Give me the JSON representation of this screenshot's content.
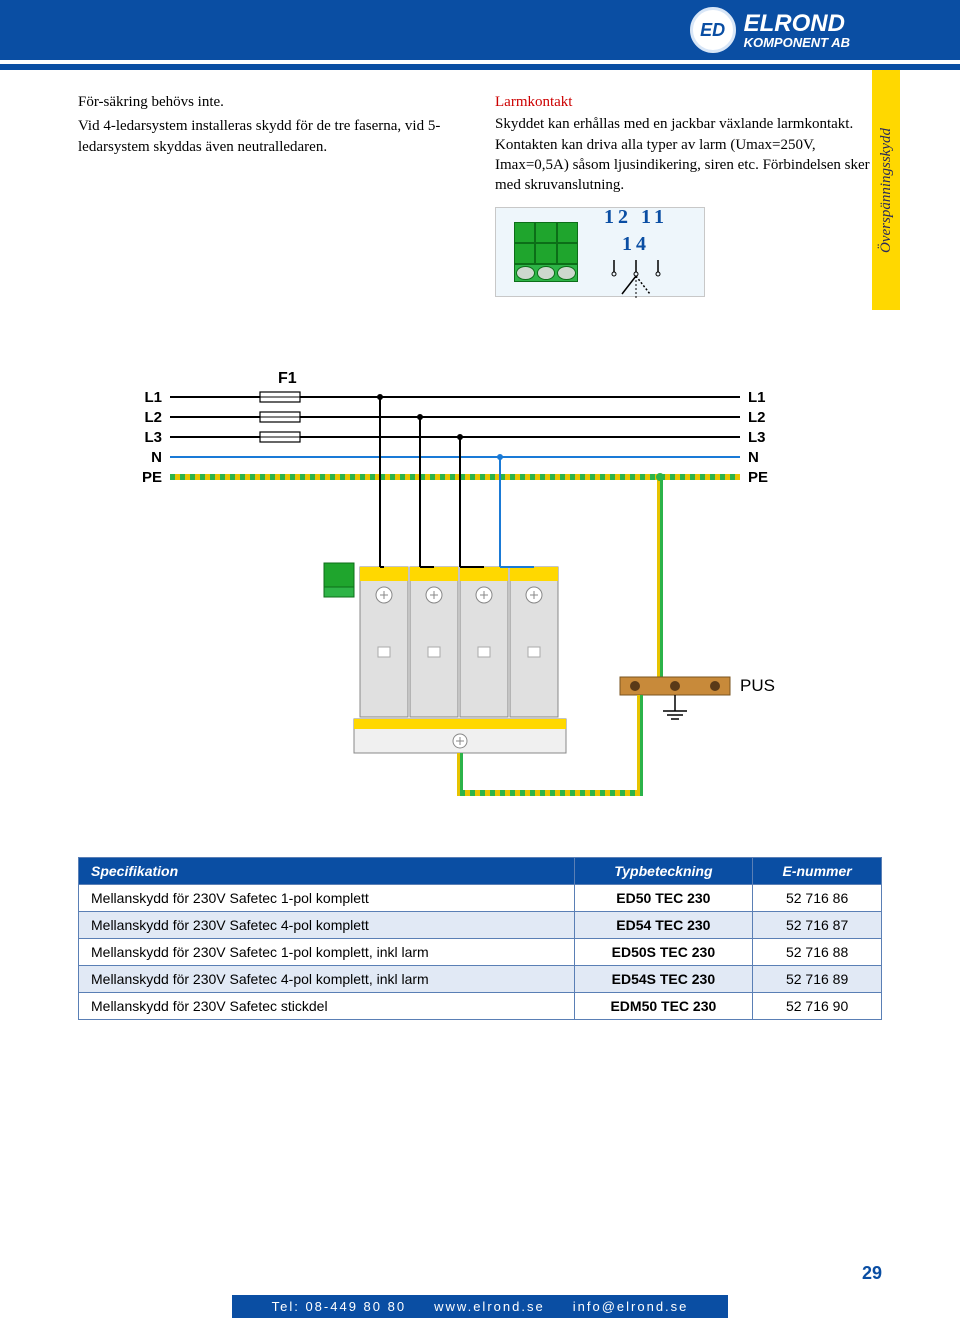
{
  "header": {
    "logo_mono": "ED",
    "logo_line1": "ELROND",
    "logo_line2": "KOMPONENT AB"
  },
  "left_col": {
    "p1": "För-säkring behövs inte.",
    "p2": "Vid 4-ledarsystem installeras skydd för de tre faserna, vid 5-ledarsystem skyddas även neutralledaren."
  },
  "right_col": {
    "title": "Larmkontakt",
    "p1": "Skyddet kan erhållas med en jackbar växlande larmkontakt. Kontakten kan driva alla typer av larm (Umax=250V, Imax=0,5A) såsom ljusindikering, siren etc. Förbindelsen sker med skruvanslutning.",
    "contact_nums": "12 11 14"
  },
  "side_tab": "Överspänningsskydd",
  "schematic": {
    "left_labels": [
      "L1",
      "L2",
      "L3",
      "N",
      "PE"
    ],
    "right_labels": [
      "L1",
      "L2",
      "L3",
      "N",
      "PE"
    ],
    "fuse_label": "F1",
    "bus_label": "PUS",
    "colors": {
      "phase": "#000000",
      "neutral": "#1a7ad6",
      "pe_a": "#2bb34a",
      "pe_b": "#e6c300",
      "device_body": "#e0e0e0",
      "device_bar": "#ffd800",
      "device_base": "#f0f0f0"
    }
  },
  "table": {
    "headers": [
      "Specifikation",
      "Typbeteckning",
      "E-nummer"
    ],
    "rows": [
      [
        "Mellanskydd för 230V Safetec 1-pol komplett",
        "ED50 TEC 230",
        "52 716 86"
      ],
      [
        "Mellanskydd för 230V Safetec 4-pol komplett",
        "ED54 TEC 230",
        "52 716 87"
      ],
      [
        "Mellanskydd för 230V Safetec 1-pol komplett, inkl larm",
        "ED50S TEC 230",
        "52 716 88"
      ],
      [
        "Mellanskydd för 230V Safetec 4-pol komplett, inkl larm",
        "ED54S TEC 230",
        "52 716 89"
      ],
      [
        "Mellanskydd för 230V Safetec stickdel",
        "EDM50 TEC 230",
        "52 716 90"
      ]
    ]
  },
  "page_number": "29",
  "footer": {
    "tel_label": "Tel:",
    "tel": "08-449 80 80",
    "url": "www.elrond.se",
    "email": "info@elrond.se"
  }
}
